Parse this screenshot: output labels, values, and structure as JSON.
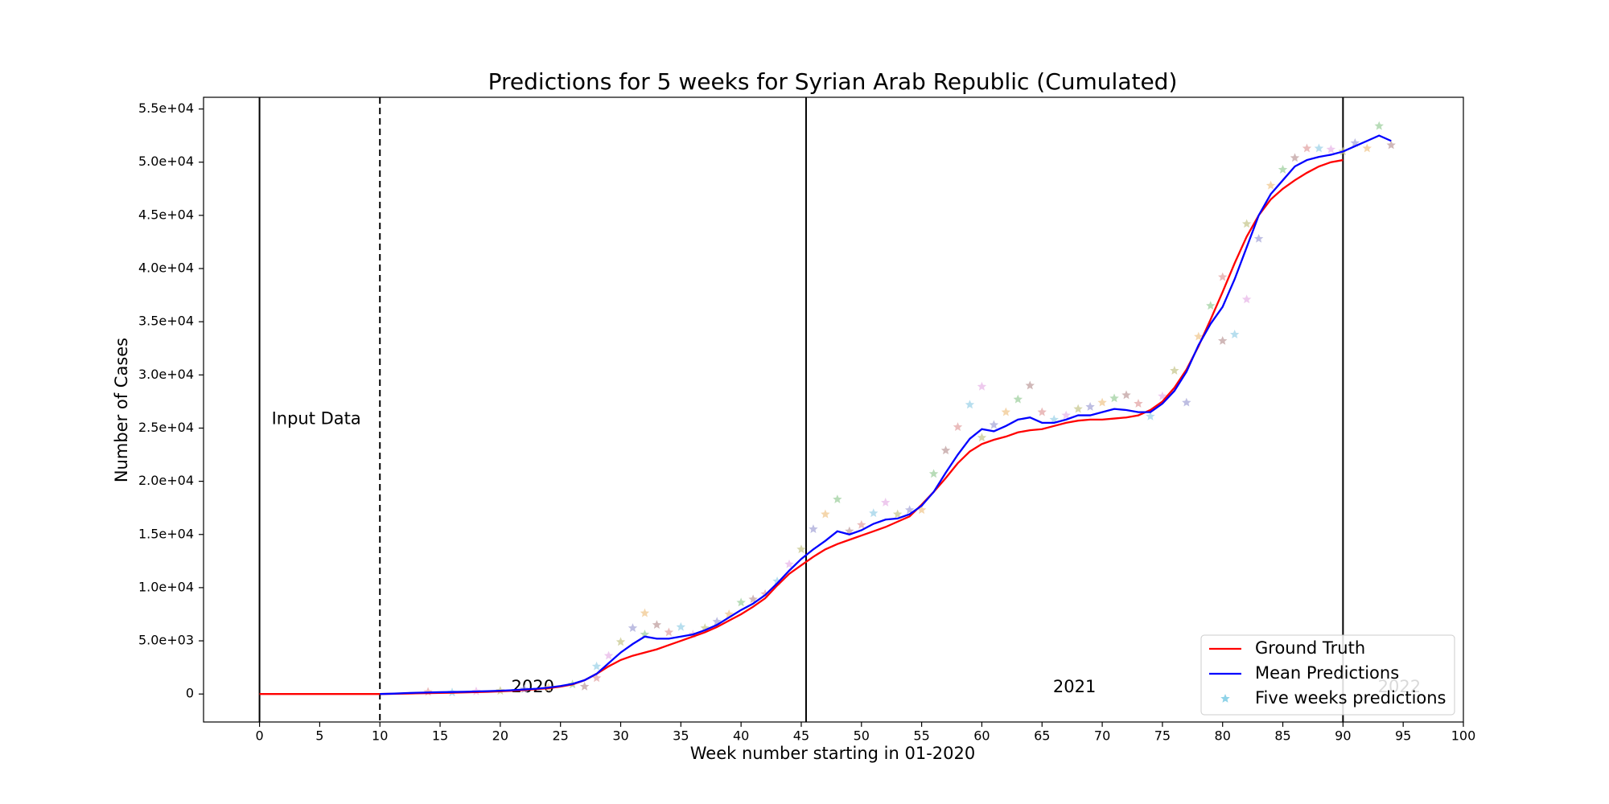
{
  "chart_data": {
    "type": "line",
    "title": "Predictions for 5 weeks for Syrian Arab Republic (Cumulated)",
    "xlabel": "Week number starting in 01-2020",
    "ylabel": "Number of Cases",
    "xlim": [
      -4.65,
      100
    ],
    "ylim": [
      -2630,
      56100
    ],
    "xticks": [
      0,
      5,
      10,
      15,
      20,
      25,
      30,
      35,
      40,
      45,
      50,
      55,
      60,
      65,
      70,
      75,
      80,
      85,
      90,
      95,
      100
    ],
    "yticks": [
      0,
      {
        "value": 5000,
        "label": "5.0e+03"
      },
      {
        "value": 10000,
        "label": "1.0e+04"
      },
      {
        "value": 15000,
        "label": "1.5e+04"
      },
      {
        "value": 20000,
        "label": "2.0e+04"
      },
      {
        "value": 25000,
        "label": "2.5e+04"
      },
      {
        "value": 30000,
        "label": "3.0e+04"
      },
      {
        "value": 35000,
        "label": "3.5e+04"
      },
      {
        "value": 40000,
        "label": "4.0e+04"
      },
      {
        "value": 45000,
        "label": "4.5e+04"
      },
      {
        "value": 50000,
        "label": "5.0e+04"
      },
      {
        "value": 55000,
        "label": "5.5e+04"
      }
    ],
    "vlines": [
      {
        "x": 0,
        "style": "solid"
      },
      {
        "x": 10,
        "style": "dashed"
      },
      {
        "x": 45.4,
        "style": "solid"
      },
      {
        "x": 90,
        "style": "solid"
      }
    ],
    "annotations": [
      "Input Data",
      "2020",
      "2021",
      "2022"
    ],
    "legend": "lower right",
    "series": [
      {
        "name": "Ground Truth",
        "color": "#ff0000",
        "kind": "line",
        "x": [
          0,
          1,
          2,
          3,
          4,
          5,
          6,
          7,
          8,
          9,
          10,
          11,
          12,
          13,
          14,
          15,
          16,
          17,
          18,
          19,
          20,
          21,
          22,
          23,
          24,
          25,
          26,
          27,
          28,
          29,
          30,
          31,
          32,
          33,
          34,
          35,
          36,
          37,
          38,
          39,
          40,
          41,
          42,
          43,
          44,
          45,
          46,
          47,
          48,
          49,
          50,
          51,
          52,
          53,
          54,
          55,
          56,
          57,
          58,
          59,
          60,
          61,
          62,
          63,
          64,
          65,
          66,
          67,
          68,
          69,
          70,
          71,
          72,
          73,
          74,
          75,
          76,
          77,
          78,
          79,
          80,
          81,
          82,
          83,
          84,
          85,
          86,
          87,
          88,
          89,
          90
        ],
        "values": [
          0,
          0,
          0,
          0,
          0,
          0,
          0,
          0,
          0,
          0,
          0,
          20,
          40,
          60,
          80,
          100,
          120,
          150,
          180,
          210,
          250,
          300,
          380,
          450,
          550,
          700,
          900,
          1300,
          1900,
          2600,
          3200,
          3600,
          3900,
          4200,
          4600,
          5000,
          5400,
          5800,
          6300,
          6900,
          7500,
          8200,
          9000,
          10200,
          11300,
          12100,
          12900,
          13600,
          14100,
          14500,
          14900,
          15300,
          15700,
          16200,
          16700,
          17800,
          19000,
          20300,
          21700,
          22800,
          23500,
          23900,
          24200,
          24600,
          24800,
          24900,
          25200,
          25500,
          25700,
          25800,
          25800,
          25900,
          26000,
          26200,
          26700,
          27500,
          28800,
          30500,
          32700,
          35200,
          37800,
          40500,
          43000,
          45000,
          46500,
          47500,
          48300,
          49000,
          49600,
          50000,
          50200
        ]
      },
      {
        "name": "Mean Predictions",
        "color": "#0000ff",
        "kind": "line",
        "x": [
          10,
          11,
          12,
          13,
          14,
          15,
          16,
          17,
          18,
          19,
          20,
          21,
          22,
          23,
          24,
          25,
          26,
          27,
          28,
          29,
          30,
          31,
          32,
          33,
          34,
          35,
          36,
          37,
          38,
          39,
          40,
          41,
          42,
          43,
          44,
          45,
          46,
          47,
          48,
          49,
          50,
          51,
          52,
          53,
          54,
          55,
          56,
          57,
          58,
          59,
          60,
          61,
          62,
          63,
          64,
          65,
          66,
          67,
          68,
          69,
          70,
          71,
          72,
          73,
          74,
          75,
          76,
          77,
          78,
          79,
          80,
          81,
          82,
          83,
          84,
          85,
          86,
          87,
          88,
          89,
          90,
          91,
          92,
          93,
          94
        ],
        "values": [
          0,
          30,
          80,
          120,
          150,
          170,
          190,
          210,
          240,
          270,
          310,
          360,
          430,
          500,
          600,
          750,
          950,
          1300,
          1900,
          2900,
          3900,
          4700,
          5400,
          5200,
          5200,
          5400,
          5600,
          6000,
          6500,
          7200,
          7900,
          8500,
          9300,
          10400,
          11600,
          12700,
          13600,
          14400,
          15300,
          15000,
          15400,
          16000,
          16400,
          16500,
          16900,
          17700,
          19000,
          20800,
          22500,
          24000,
          24900,
          24700,
          25200,
          25800,
          26000,
          25500,
          25500,
          25800,
          26200,
          26200,
          26500,
          26800,
          26700,
          26500,
          26500,
          27300,
          28500,
          30300,
          32800,
          34800,
          36400,
          39000,
          42000,
          45000,
          47000,
          48300,
          49600,
          50200,
          50500,
          50700,
          51000,
          51500,
          52000,
          52500,
          52000
        ]
      },
      {
        "name": "Five weeks predictions",
        "color": "#8fd3e8",
        "kind": "scatter",
        "point_colors": [
          "#e3a5a5",
          "#9fd3e8",
          "#e8b8e8",
          "#c8c890",
          "#a8a8d8",
          "#f0c890",
          "#a0d0a0",
          "#c0a0a0"
        ],
        "x": [
          14,
          16,
          18,
          20,
          22,
          24,
          26,
          27,
          28,
          28,
          29,
          30,
          31,
          32,
          32,
          33,
          34,
          35,
          36,
          37,
          38,
          39,
          40,
          41,
          42,
          43,
          44,
          45,
          46,
          47,
          48,
          49,
          50,
          51,
          52,
          53,
          54,
          55,
          56,
          57,
          58,
          59,
          60,
          60,
          61,
          62,
          63,
          64,
          65,
          66,
          67,
          68,
          69,
          70,
          71,
          72,
          73,
          74,
          75,
          76,
          77,
          78,
          79,
          80,
          80,
          81,
          82,
          82,
          83,
          84,
          85,
          86,
          87,
          88,
          89,
          90,
          91,
          92,
          93,
          94
        ],
        "values": [
          200,
          150,
          250,
          300,
          450,
          600,
          900,
          700,
          1500,
          2600,
          3600,
          4900,
          6200,
          7600,
          5600,
          6500,
          5800,
          6300,
          5600,
          6200,
          6800,
          7500,
          8600,
          8900,
          9400,
          10600,
          12200,
          13600,
          15500,
          16900,
          18300,
          15300,
          15900,
          17000,
          18000,
          16900,
          17300,
          17300,
          20700,
          22900,
          25100,
          27200,
          28900,
          24100,
          25300,
          26500,
          27700,
          29000,
          26500,
          25800,
          26200,
          26800,
          27000,
          27400,
          27800,
          28100,
          27300,
          26100,
          28000,
          30400,
          27400,
          33600,
          36500,
          33200,
          39200,
          33800,
          37100,
          44200,
          42800,
          47800,
          49300,
          50400,
          51300,
          51300,
          51200,
          51000,
          51800,
          51300,
          53400,
          51600
        ]
      }
    ]
  }
}
